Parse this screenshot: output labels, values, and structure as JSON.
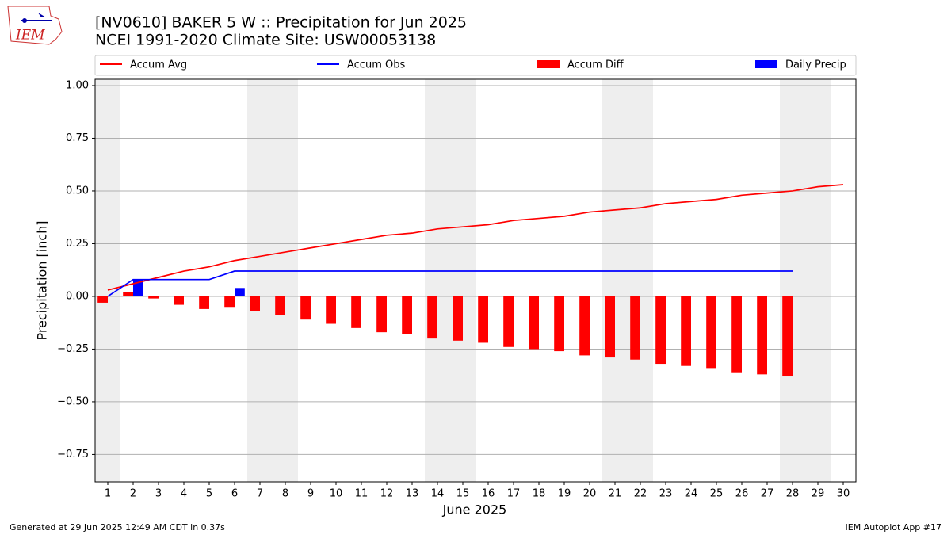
{
  "chart_data": {
    "type": "bar",
    "title": "[NV0610] BAKER 5 W :: Precipitation for Jun 2025",
    "subtitle": "NCEI 1991-2020 Climate Site: USW00053138",
    "logo_text": "IEM",
    "xlabel": "June 2025",
    "ylabel": "Precipitation [inch]",
    "footer_left": "Generated at 29 Jun 2025 12:49 AM CDT in 0.37s",
    "footer_right": "IEM Autoplot App #17",
    "x": [
      1,
      2,
      3,
      4,
      5,
      6,
      7,
      8,
      9,
      10,
      11,
      12,
      13,
      14,
      15,
      16,
      17,
      18,
      19,
      20,
      21,
      22,
      23,
      24,
      25,
      26,
      27,
      28,
      29,
      30
    ],
    "xlim": [
      0.5,
      30.5
    ],
    "xticks": [
      1,
      2,
      3,
      4,
      5,
      6,
      7,
      8,
      9,
      10,
      11,
      12,
      13,
      14,
      15,
      16,
      17,
      18,
      19,
      20,
      21,
      22,
      23,
      24,
      25,
      26,
      27,
      28,
      29,
      30
    ],
    "ylim": [
      -0.88,
      1.03
    ],
    "yticks": [
      {
        "value": -0.75,
        "label": "−0.75"
      },
      {
        "value": -0.5,
        "label": "−0.50"
      },
      {
        "value": -0.25,
        "label": "−0.25"
      },
      {
        "value": 0,
        "label": "0.00"
      },
      0.25,
      {
        "value": 0.5,
        "label": "0.50"
      },
      0.75,
      {
        "value": 1,
        "label": "1.00"
      }
    ],
    "grid": true,
    "series": [
      {
        "name": "Accum Avg",
        "kind": "line",
        "color": "#ff0000",
        "values": [
          0.03,
          0.06,
          0.09,
          0.12,
          0.14,
          0.17,
          0.19,
          0.21,
          0.23,
          0.25,
          0.27,
          0.29,
          0.3,
          0.32,
          0.33,
          0.34,
          0.36,
          0.37,
          0.38,
          0.4,
          0.41,
          0.42,
          0.44,
          0.45,
          0.46,
          0.48,
          0.49,
          0.5,
          0.52,
          0.53
        ]
      },
      {
        "name": "Accum Obs",
        "kind": "line",
        "color": "#0000ff",
        "values": [
          0,
          0.08,
          0.08,
          0.08,
          0.08,
          0.12,
          0.12,
          0.12,
          0.12,
          0.12,
          0.12,
          0.12,
          0.12,
          0.12,
          0.12,
          0.12,
          0.12,
          0.12,
          0.12,
          0.12,
          0.12,
          0.12,
          0.12,
          0.12,
          0.12,
          0.12,
          0.12,
          0.12,
          null,
          null
        ]
      },
      {
        "name": "Accum Diff",
        "kind": "bar",
        "color": "#ff0000",
        "values": [
          -0.03,
          0.02,
          -0.01,
          -0.04,
          -0.06,
          -0.05,
          -0.07,
          -0.09,
          -0.11,
          -0.13,
          -0.15,
          -0.17,
          -0.18,
          -0.2,
          -0.21,
          -0.22,
          -0.24,
          -0.25,
          -0.26,
          -0.28,
          -0.29,
          -0.3,
          -0.32,
          -0.33,
          -0.34,
          -0.36,
          -0.37,
          -0.38,
          null,
          null
        ]
      },
      {
        "name": "Daily Precip",
        "kind": "bar",
        "color": "#0000ff",
        "values": [
          0,
          0.08,
          0,
          0,
          0,
          0.04,
          0,
          0,
          0,
          0,
          0,
          0,
          0,
          0,
          0,
          0,
          0,
          0,
          0,
          0,
          0,
          0,
          0,
          0,
          0,
          0,
          0,
          0,
          null,
          null
        ]
      }
    ]
  }
}
